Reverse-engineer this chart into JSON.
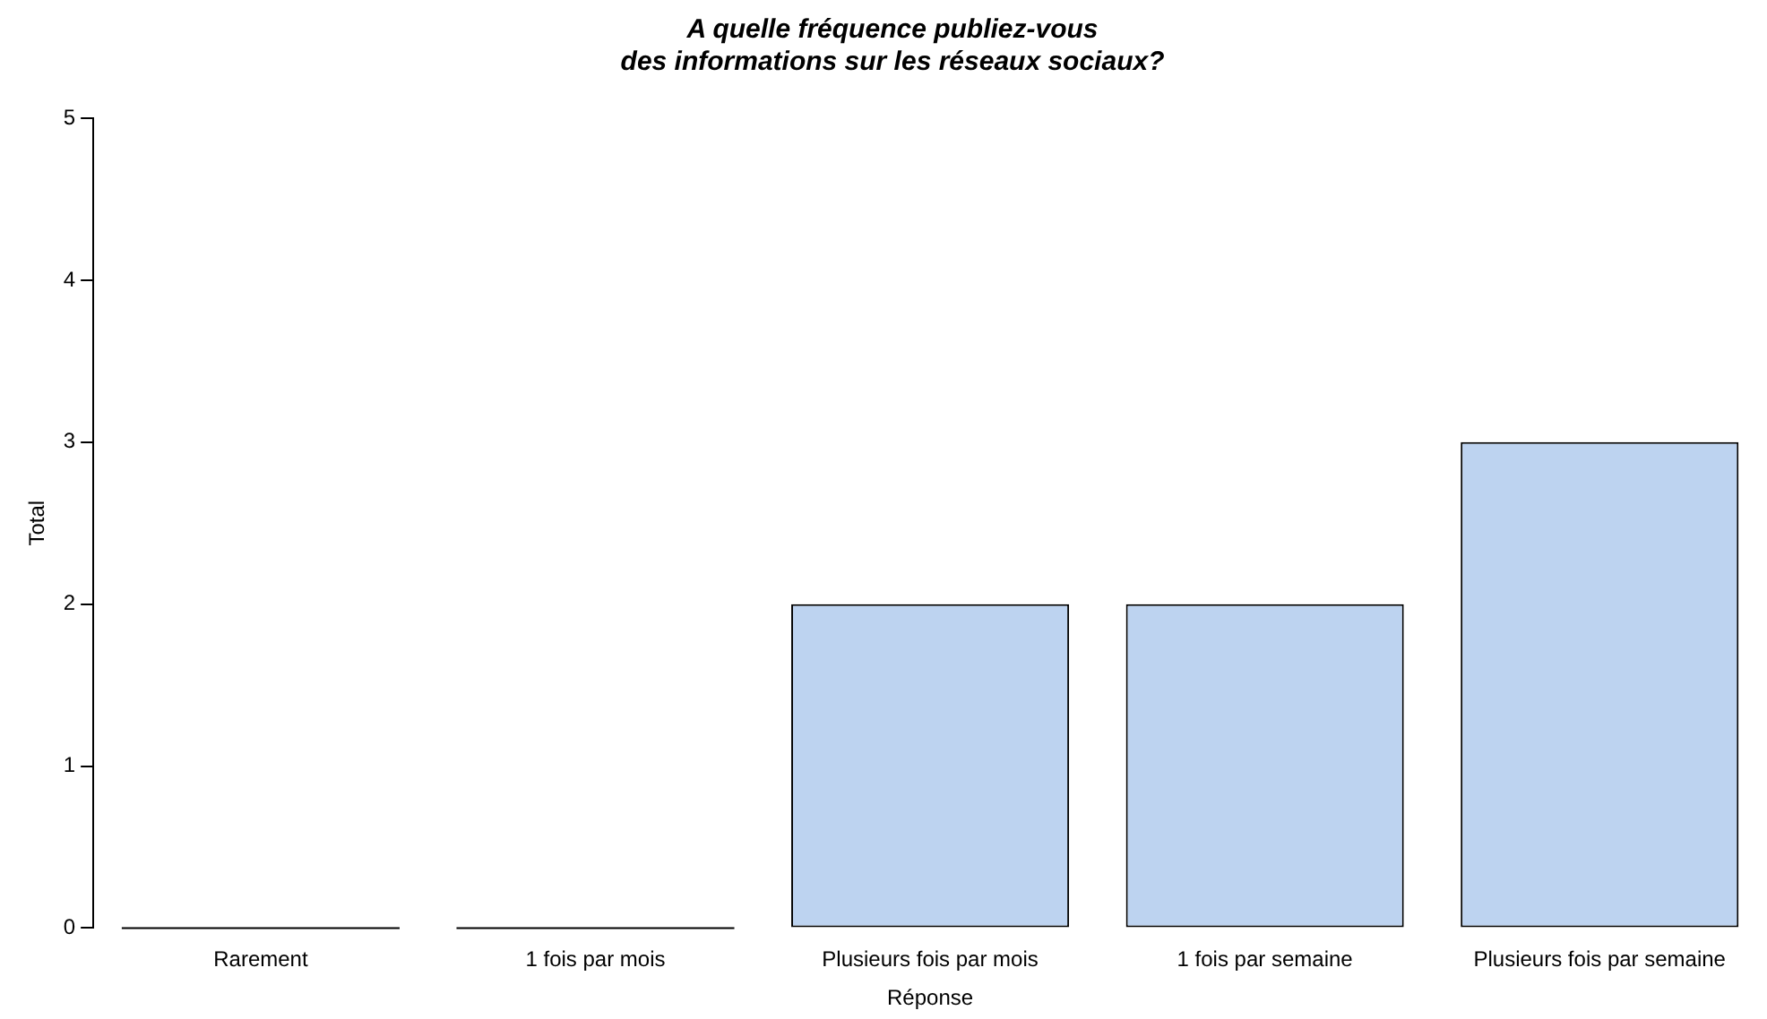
{
  "chart_data": {
    "type": "bar",
    "title": "A quelle fréquence publiez-vous\ndes informations sur les réseaux sociaux?",
    "xlabel": "Réponse",
    "ylabel": "Total",
    "categories": [
      "Rarement",
      "1 fois par mois",
      "Plusieurs fois par mois",
      "1 fois par semaine",
      "Plusieurs fois par semaine"
    ],
    "values": [
      0,
      0,
      2,
      2,
      3
    ],
    "color": "#bdd3f0",
    "ylim": [
      0,
      5
    ],
    "yticks": [
      0,
      1,
      2,
      3,
      4,
      5
    ],
    "grid": false,
    "legend": false
  }
}
